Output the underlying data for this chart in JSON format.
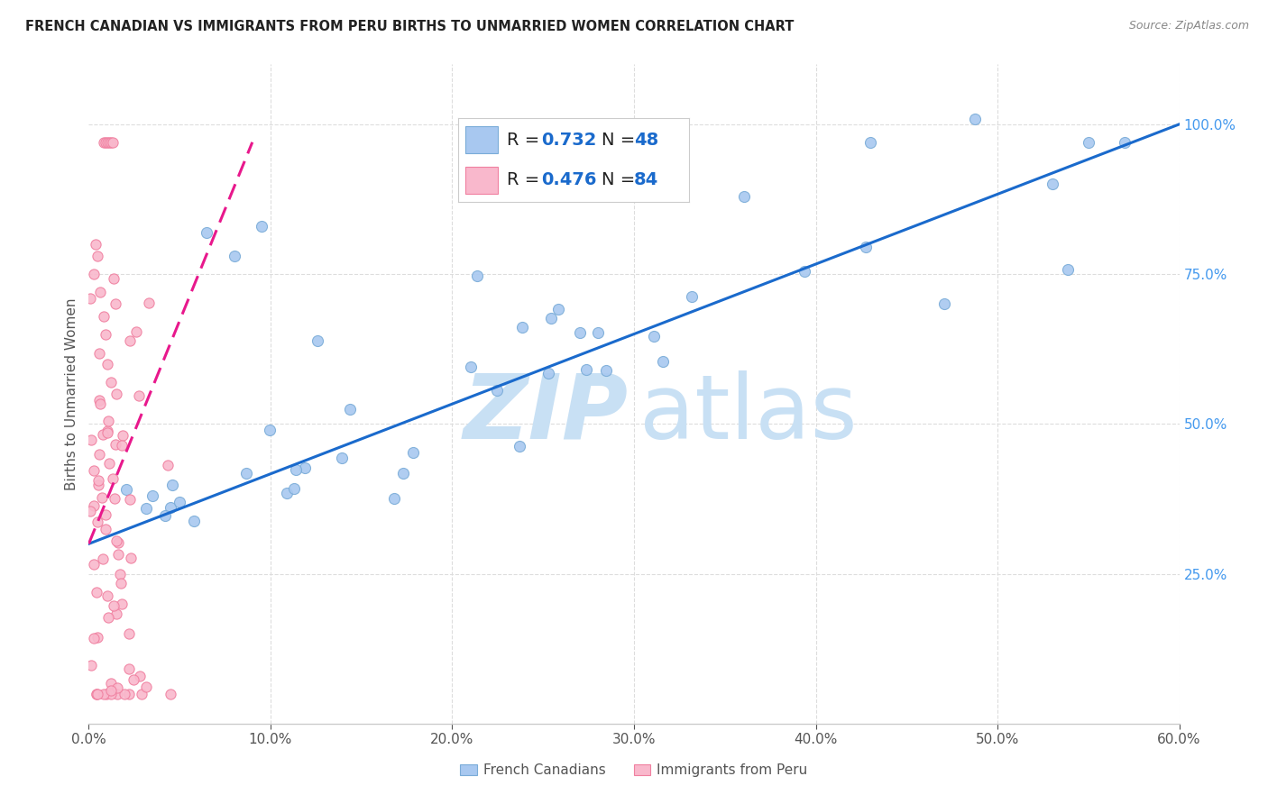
{
  "title": "FRENCH CANADIAN VS IMMIGRANTS FROM PERU BIRTHS TO UNMARRIED WOMEN CORRELATION CHART",
  "source": "Source: ZipAtlas.com",
  "ylabel": "Births to Unmarried Women",
  "xmin": 0.0,
  "xmax": 60.0,
  "ymin": 0.0,
  "ymax": 110.0,
  "xtick_vals": [
    0,
    10,
    20,
    30,
    40,
    50,
    60
  ],
  "right_ytick_vals": [
    25,
    50,
    75,
    100
  ],
  "blue_R": "0.732",
  "blue_N": "48",
  "pink_R": "0.476",
  "pink_N": "84",
  "blue_fill": "#A8C8F0",
  "pink_fill": "#F9B8CC",
  "blue_edge": "#7AACD8",
  "pink_edge": "#F080A0",
  "trendline_blue": "#1A6ACC",
  "trendline_pink": "#E8188C",
  "right_axis_color": "#4499EE",
  "watermark_color": "#C8E0F4",
  "grid_color": "#DDDDDD",
  "title_color": "#222222",
  "source_color": "#888888",
  "label_color": "#555555",
  "legend_text_color": "#222222",
  "legend_val_color": "#1A6ACC",
  "blue_trend_x0": 0.0,
  "blue_trend_y0": 30.0,
  "blue_trend_x1": 60.0,
  "blue_trend_y1": 100.0,
  "pink_trend_x0": 0.0,
  "pink_trend_y0": 30.0,
  "pink_trend_x1": 9.0,
  "pink_trend_y1": 97.0
}
